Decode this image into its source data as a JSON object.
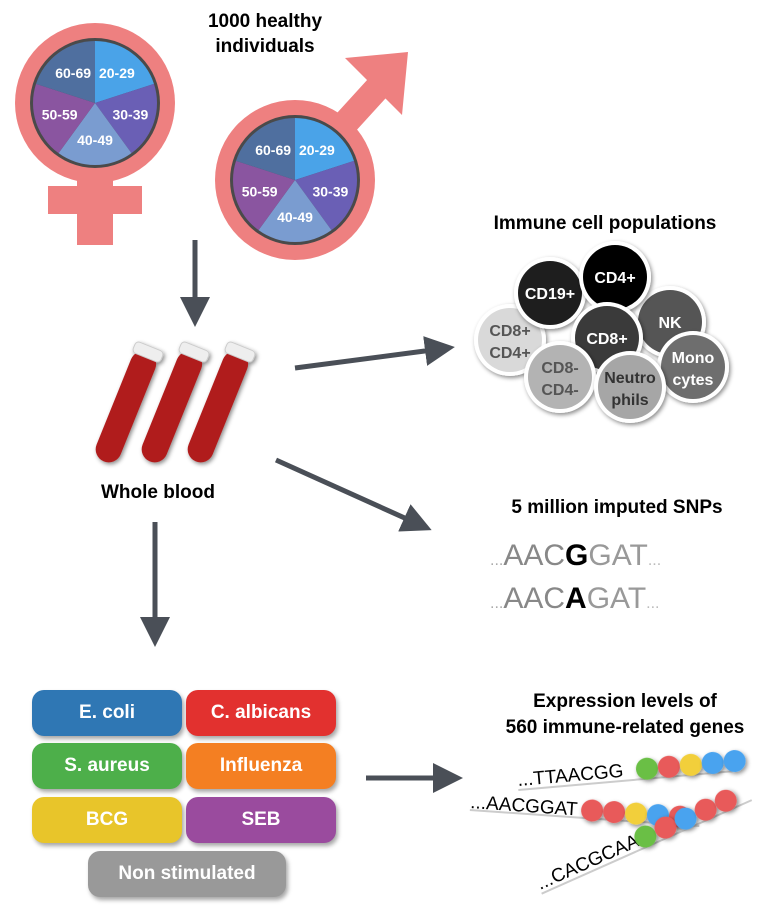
{
  "cohort": {
    "title_line1": "1000 healthy",
    "title_line2": "individuals",
    "age_groups": [
      "20-29",
      "30-39",
      "40-49",
      "50-59",
      "60-69"
    ],
    "age_colors": [
      "#4aa3e8",
      "#6a5fb5",
      "#7a9cd0",
      "#8a55a0",
      "#4f6f9f"
    ],
    "symbol_color": "#ee8080"
  },
  "blood": {
    "label": "Whole blood",
    "tube_color": "#b01c1c"
  },
  "immune": {
    "title": "Immune cell populations",
    "cells": [
      {
        "l1": "CD8+",
        "l2": "CD4+",
        "fill": "#d9d9d9",
        "text": "#555555"
      },
      {
        "l1": "CD19+",
        "l2": "",
        "fill": "#1e1e1e",
        "text": "#ffffff"
      },
      {
        "l1": "NK",
        "l2": "",
        "fill": "#555555",
        "text": "#ffffff"
      },
      {
        "l1": "CD4+",
        "l2": "",
        "fill": "#000000",
        "text": "#ffffff"
      },
      {
        "l1": "CD8+",
        "l2": "",
        "fill": "#3a3a3a",
        "text": "#ffffff"
      },
      {
        "l1": "CD8-",
        "l2": "CD4-",
        "fill": "#b3b3b3",
        "text": "#555555"
      },
      {
        "l1": "Mono",
        "l2": "cytes",
        "fill": "#6e6e6e",
        "text": "#ffffff"
      },
      {
        "l1": "Neutro",
        "l2": "phils",
        "fill": "#a6a6a6",
        "text": "#333333"
      }
    ]
  },
  "snps": {
    "title": "5 million imputed SNPs",
    "seq1": {
      "pre": "AAC",
      "snp": "G",
      "post": "GAT"
    },
    "seq2": {
      "pre": "AAC",
      "snp": "A",
      "post": "GAT"
    },
    "dots": "..."
  },
  "stimuli": [
    {
      "label": "E. coli",
      "color": "#2f77b4"
    },
    {
      "label": "C. albicans",
      "color": "#e2312f"
    },
    {
      "label": "S. aureus",
      "color": "#4daf4a"
    },
    {
      "label": "Influenza",
      "color": "#f47f22"
    },
    {
      "label": "BCG",
      "color": "#e8c52a"
    },
    {
      "label": "SEB",
      "color": "#9a4b9e"
    },
    {
      "label": "Non stimulated",
      "color": "#999999"
    }
  ],
  "expression": {
    "title_line1": "Expression levels of",
    "title_line2": "560 immune-related genes",
    "seqs": [
      "...TTAACGG",
      "...AACGGAT",
      "...CACGCAA"
    ],
    "bead_colors": {
      "green": "#6abf45",
      "red": "#e85a5a",
      "yellow": "#f2cf3a",
      "blue": "#4aa3ef"
    }
  }
}
